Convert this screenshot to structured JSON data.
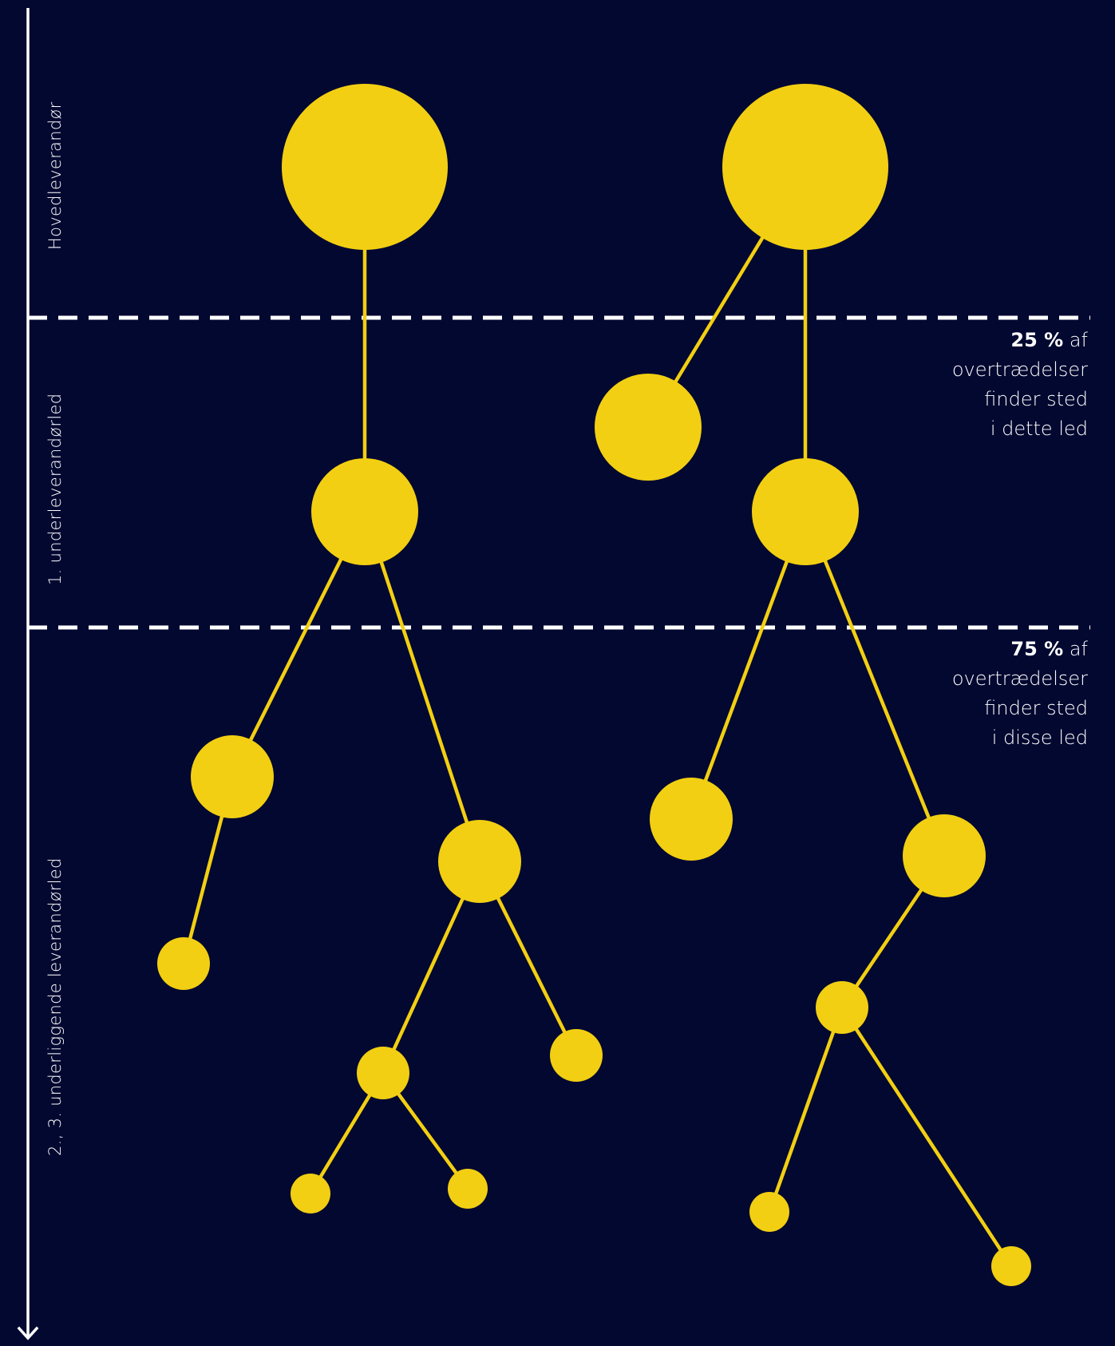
{
  "colors": {
    "background": "#020830",
    "node": "#F2CF12",
    "edge": "#F2CF12",
    "axis": "#FFFFFF",
    "divider": "#FFFFFF"
  },
  "axis": {
    "icon": "arrow-down-icon"
  },
  "levels": [
    {
      "id": "main",
      "label": "Hovedleverandør"
    },
    {
      "id": "first",
      "label": "1. underleverandørled"
    },
    {
      "id": "deeper",
      "label": "2., 3. underliggende leverandørled"
    }
  ],
  "notes": [
    {
      "id": "first",
      "percent": "25 %",
      "suffix": "af",
      "lines": [
        "overtrædelser",
        "finder sted",
        "i dette led"
      ]
    },
    {
      "id": "deeper",
      "percent": "75 %",
      "suffix": "af",
      "lines": [
        "overtrædelser",
        "finder sted",
        "i disse led"
      ]
    }
  ]
}
